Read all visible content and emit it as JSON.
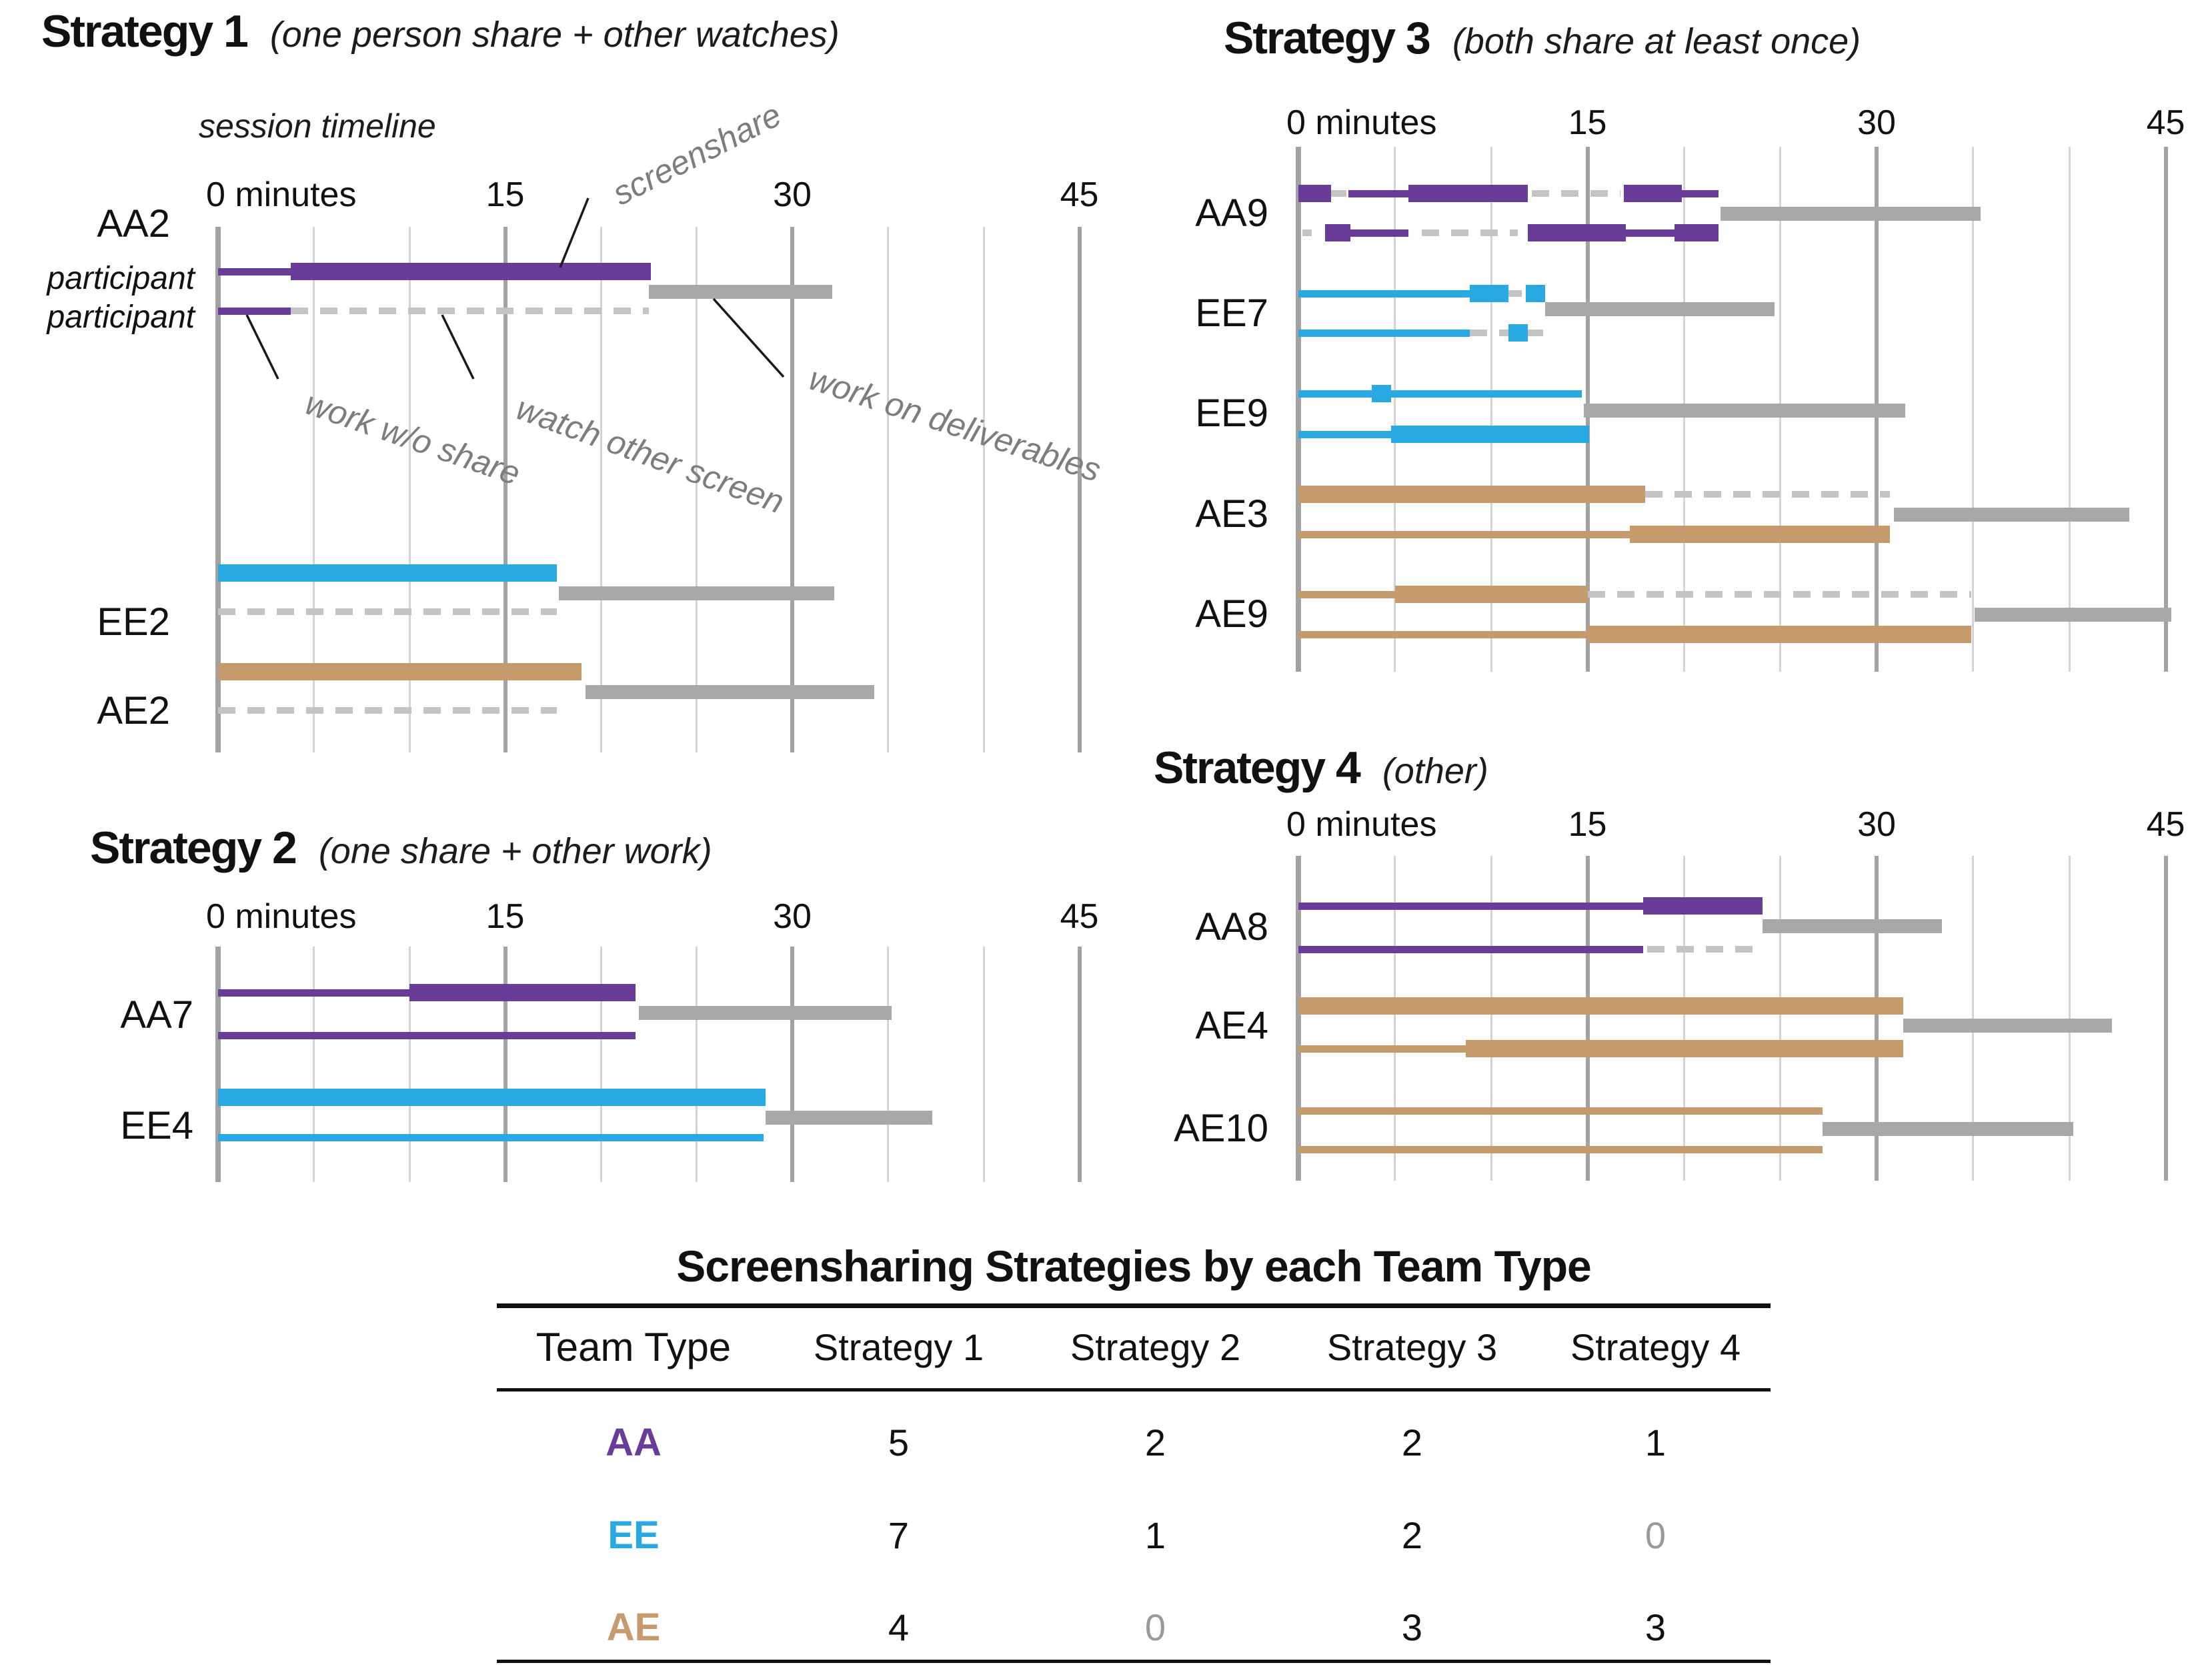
{
  "colors": {
    "purple": "#693c9a",
    "blue": "#29a9e1",
    "tan": "#c59a6d",
    "deliverables_gray": "#a8a8a8",
    "watch_dash_gray": "#c4c4c4",
    "grid_minor": "#d4d4d4",
    "grid_major": "#a2a2a2",
    "annotation_gray": "#7d7d7d",
    "leader_line": "#1a1a1a",
    "muted_zero": "#9a9a9a",
    "text": "#111111"
  },
  "chart_data": {
    "type": "timeline-gantt",
    "time_axis": {
      "unit": "minutes",
      "zero_label": "0 minutes",
      "ticks": [
        0,
        15,
        30,
        45
      ],
      "minor_step": 5,
      "max": 45.7
    },
    "segment_legend": {
      "thick": "screenshare",
      "thin": "work w/o share",
      "dash": "watch other screen",
      "gray": "work on deliverables"
    },
    "panels": [
      {
        "id": "strategy1",
        "title": "Strategy 1",
        "subtitle": "(one person share + other watches)",
        "session_label": "session timeline",
        "annotations": [
          {
            "id": "screenshare",
            "label": "screenshare"
          },
          {
            "id": "work-wo-share",
            "label": "work w/o share"
          },
          {
            "id": "watch-other-screen",
            "label": "watch other screen"
          },
          {
            "id": "work-on-deliverables",
            "label": "work on deliverables"
          }
        ],
        "teams": [
          {
            "label": "AA2",
            "color": "purple",
            "row_labels": [
              "participant",
              "participant"
            ],
            "p1": [
              {
                "t": "thin",
                "s": 0,
                "e": 3.8
              },
              {
                "t": "thick",
                "s": 3.8,
                "e": 22.6
              }
            ],
            "deliverables": {
              "s": 22.5,
              "e": 32.1
            },
            "p2": [
              {
                "t": "thin",
                "s": 0,
                "e": 3.8
              },
              {
                "t": "dash",
                "s": 3.8,
                "e": 22.5
              }
            ]
          },
          {
            "label": "EE2",
            "color": "blue",
            "p1": [
              {
                "t": "thick",
                "s": 0,
                "e": 17.7
              }
            ],
            "deliverables": {
              "s": 17.8,
              "e": 32.2
            },
            "p2": [
              {
                "t": "dash",
                "s": 0,
                "e": 17.7
              }
            ]
          },
          {
            "label": "AE2",
            "color": "tan",
            "p1": [
              {
                "t": "thick",
                "s": 0,
                "e": 19.0
              }
            ],
            "deliverables": {
              "s": 19.2,
              "e": 34.3
            },
            "p2": [
              {
                "t": "dash",
                "s": 0,
                "e": 17.7
              }
            ]
          }
        ]
      },
      {
        "id": "strategy2",
        "title": "Strategy 2",
        "subtitle": "(one share + other work)",
        "teams": [
          {
            "label": "AA7",
            "color": "purple",
            "p1": [
              {
                "t": "thin",
                "s": 0,
                "e": 10.0
              },
              {
                "t": "thick",
                "s": 10.0,
                "e": 21.8
              }
            ],
            "deliverables": {
              "s": 22.0,
              "e": 35.2
            },
            "p2": [
              {
                "t": "thin",
                "s": 0,
                "e": 21.8
              }
            ]
          },
          {
            "label": "EE4",
            "color": "blue",
            "p1": [
              {
                "t": "thick",
                "s": 0,
                "e": 28.6
              }
            ],
            "deliverables": {
              "s": 28.6,
              "e": 37.3
            },
            "p2": [
              {
                "t": "thin",
                "s": 0,
                "e": 28.5
              }
            ]
          }
        ]
      },
      {
        "id": "strategy3",
        "title": "Strategy 3",
        "subtitle": "(both share at least once)",
        "teams": [
          {
            "label": "AA9",
            "color": "purple",
            "p1": [
              {
                "t": "thick",
                "s": 0,
                "e": 1.7
              },
              {
                "t": "dash",
                "s": 1.7,
                "e": 2.5
              },
              {
                "t": "thin",
                "s": 2.6,
                "e": 5.7
              },
              {
                "t": "thick",
                "s": 5.7,
                "e": 11.9
              },
              {
                "t": "dash",
                "s": 12.1,
                "e": 16.7
              },
              {
                "t": "thick",
                "s": 16.9,
                "e": 19.9
              },
              {
                "t": "thin",
                "s": 19.9,
                "e": 21.8
              }
            ],
            "deliverables": {
              "s": 21.9,
              "e": 35.4
            },
            "p2": [
              {
                "t": "dash",
                "s": 0.2,
                "e": 0.7
              },
              {
                "t": "thick",
                "s": 1.4,
                "e": 2.7
              },
              {
                "t": "thin",
                "s": 2.7,
                "e": 5.7
              },
              {
                "t": "dash",
                "s": 6.4,
                "e": 11.4
              },
              {
                "t": "thick",
                "s": 11.9,
                "e": 17.0
              },
              {
                "t": "thin",
                "s": 17.0,
                "e": 19.5
              },
              {
                "t": "thick",
                "s": 19.5,
                "e": 21.8
              }
            ]
          },
          {
            "label": "EE7",
            "color": "blue",
            "p1": [
              {
                "t": "thin",
                "s": 0,
                "e": 8.9
              },
              {
                "t": "thick",
                "s": 8.9,
                "e": 10.9
              },
              {
                "t": "dash",
                "s": 10.9,
                "e": 11.6
              },
              {
                "t": "thick",
                "s": 11.8,
                "e": 12.8
              }
            ],
            "deliverables": {
              "s": 12.8,
              "e": 24.7
            },
            "p2": [
              {
                "t": "thin",
                "s": 0,
                "e": 8.9
              },
              {
                "t": "dash",
                "s": 8.9,
                "e": 10.9
              },
              {
                "t": "thick",
                "s": 10.9,
                "e": 11.9
              },
              {
                "t": "dash",
                "s": 11.9,
                "e": 12.7
              }
            ]
          },
          {
            "label": "EE9",
            "color": "blue",
            "p1": [
              {
                "t": "thin",
                "s": 0,
                "e": 3.8
              },
              {
                "t": "thick",
                "s": 3.8,
                "e": 4.8
              },
              {
                "t": "thin",
                "s": 4.8,
                "e": 14.7
              }
            ],
            "deliverables": {
              "s": 14.8,
              "e": 31.5
            },
            "p2": [
              {
                "t": "thin",
                "s": 0,
                "e": 4.8
              },
              {
                "t": "thick",
                "s": 4.8,
                "e": 15.1
              }
            ]
          },
          {
            "label": "AE3",
            "color": "tan",
            "p1": [
              {
                "t": "thick",
                "s": 0,
                "e": 18.0
              },
              {
                "t": "dash",
                "s": 18.0,
                "e": 30.7
              }
            ],
            "deliverables": {
              "s": 30.9,
              "e": 43.1
            },
            "p2": [
              {
                "t": "thin",
                "s": 0,
                "e": 17.2
              },
              {
                "t": "thick",
                "s": 17.2,
                "e": 30.7
              }
            ]
          },
          {
            "label": "AE9",
            "color": "tan",
            "p1": [
              {
                "t": "thin",
                "s": 0,
                "e": 5.0
              },
              {
                "t": "thick",
                "s": 5.0,
                "e": 15.0
              },
              {
                "t": "dash",
                "s": 15.0,
                "e": 34.9
              }
            ],
            "deliverables": {
              "s": 35.1,
              "e": 45.3
            },
            "p2": [
              {
                "t": "thin",
                "s": 0,
                "e": 15.0
              },
              {
                "t": "thick",
                "s": 15.0,
                "e": 34.9
              }
            ]
          }
        ]
      },
      {
        "id": "strategy4",
        "title": "Strategy 4",
        "subtitle": "(other)",
        "teams": [
          {
            "label": "AA8",
            "color": "purple",
            "p1": [
              {
                "t": "thin",
                "s": 0,
                "e": 17.9
              },
              {
                "t": "thick",
                "s": 17.9,
                "e": 24.1
              }
            ],
            "deliverables": {
              "s": 24.1,
              "e": 33.4
            },
            "p2": [
              {
                "t": "thin",
                "s": 0,
                "e": 17.9
              },
              {
                "t": "dash",
                "s": 18.1,
                "e": 24.1
              }
            ]
          },
          {
            "label": "AE4",
            "color": "tan",
            "p1": [
              {
                "t": "thick",
                "s": 0,
                "e": 31.4
              }
            ],
            "deliverables": {
              "s": 31.4,
              "e": 42.2
            },
            "p2": [
              {
                "t": "thin",
                "s": 0,
                "e": 8.7
              },
              {
                "t": "thick",
                "s": 8.7,
                "e": 31.4
              }
            ]
          },
          {
            "label": "AE10",
            "color": "tan",
            "p1": [
              {
                "t": "thin",
                "s": 0,
                "e": 27.2
              }
            ],
            "deliverables": {
              "s": 27.2,
              "e": 40.2
            },
            "p2": [
              {
                "t": "thin",
                "s": 0,
                "e": 27.2
              }
            ]
          }
        ]
      }
    ]
  },
  "table": {
    "title": "Screensharing Strategies by each Team Type",
    "headers": [
      "Team Type",
      "Strategy 1",
      "Strategy 2",
      "Strategy 3",
      "Strategy 4"
    ],
    "rows": [
      {
        "team": "AA",
        "color": "purple",
        "values": [
          "5",
          "2",
          "2",
          "1"
        ],
        "muted": [
          false,
          false,
          false,
          false
        ]
      },
      {
        "team": "EE",
        "color": "blue",
        "values": [
          "7",
          "1",
          "2",
          "0"
        ],
        "muted": [
          false,
          false,
          false,
          true
        ]
      },
      {
        "team": "AE",
        "color": "tan",
        "values": [
          "4",
          "0",
          "3",
          "3"
        ],
        "muted": [
          false,
          true,
          false,
          false
        ]
      }
    ]
  }
}
